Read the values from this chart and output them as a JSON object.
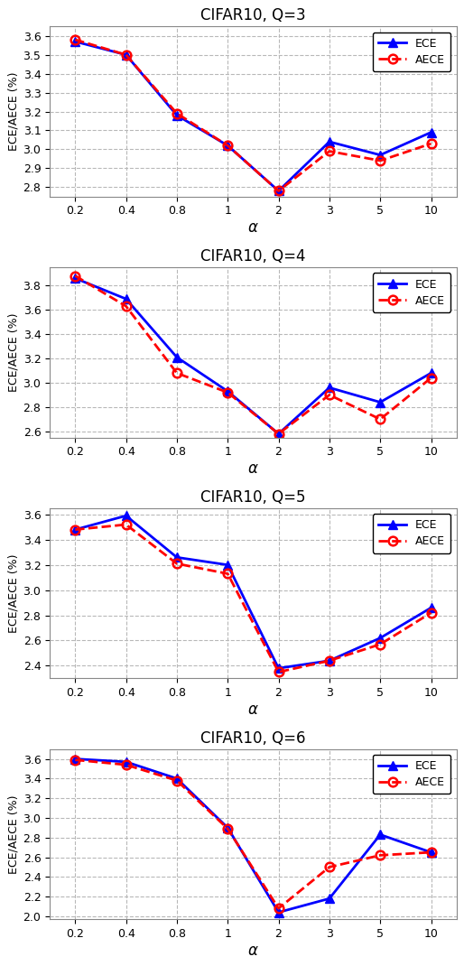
{
  "x_labels": [
    "0.2",
    "0.4",
    "0.8",
    "1",
    "2",
    "3",
    "5",
    "10"
  ],
  "plots": [
    {
      "title": "CIFAR10, Q=3",
      "ece": [
        3.57,
        3.5,
        3.18,
        3.02,
        2.78,
        3.04,
        2.97,
        3.09
      ],
      "aece": [
        3.58,
        3.5,
        3.19,
        3.02,
        2.78,
        2.99,
        2.94,
        3.03
      ],
      "ylim": [
        2.75,
        3.65
      ],
      "yticks": [
        2.8,
        2.9,
        3.0,
        3.1,
        3.2,
        3.3,
        3.4,
        3.5,
        3.6
      ]
    },
    {
      "title": "CIFAR10, Q=4",
      "ece": [
        3.86,
        3.69,
        3.21,
        2.93,
        2.58,
        2.96,
        2.84,
        3.08
      ],
      "aece": [
        3.88,
        3.63,
        3.08,
        2.92,
        2.58,
        2.9,
        2.7,
        3.04
      ],
      "ylim": [
        2.55,
        3.95
      ],
      "yticks": [
        2.6,
        2.8,
        3.0,
        3.2,
        3.4,
        3.6,
        3.8
      ]
    },
    {
      "title": "CIFAR10, Q=5",
      "ece": [
        3.48,
        3.59,
        3.26,
        3.2,
        2.38,
        2.44,
        2.62,
        2.86
      ],
      "aece": [
        3.48,
        3.52,
        3.21,
        3.13,
        2.35,
        2.44,
        2.57,
        2.82
      ],
      "ylim": [
        2.3,
        3.65
      ],
      "yticks": [
        2.4,
        2.6,
        2.8,
        3.0,
        3.2,
        3.4,
        3.6
      ]
    },
    {
      "title": "CIFAR10, Q=6",
      "ece": [
        3.6,
        3.57,
        3.4,
        2.9,
        2.04,
        2.18,
        2.83,
        2.65
      ],
      "aece": [
        3.59,
        3.54,
        3.38,
        2.89,
        2.08,
        2.5,
        2.62,
        2.65
      ],
      "ylim": [
        1.97,
        3.7
      ],
      "yticks": [
        2.0,
        2.2,
        2.4,
        2.6,
        2.8,
        3.0,
        3.2,
        3.4,
        3.6
      ]
    }
  ],
  "ece_color": "#0000ff",
  "aece_color": "#ff0000",
  "xlabel": "α",
  "ylabel": "ECE/AECE (%)",
  "legend_labels": [
    "ECE",
    "AECE"
  ],
  "background_color": "#ffffff",
  "grid_color": "#b8b8b8"
}
